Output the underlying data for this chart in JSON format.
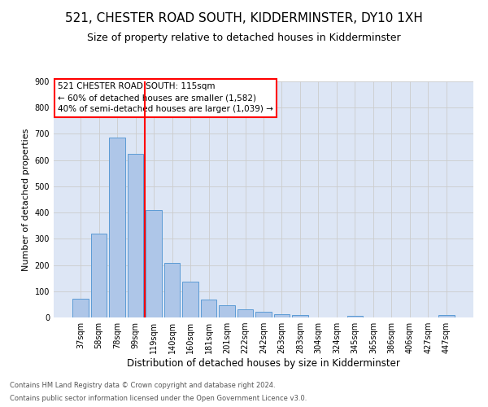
{
  "title": "521, CHESTER ROAD SOUTH, KIDDERMINSTER, DY10 1XH",
  "subtitle": "Size of property relative to detached houses in Kidderminster",
  "xlabel": "Distribution of detached houses by size in Kidderminster",
  "ylabel": "Number of detached properties",
  "footer1": "Contains HM Land Registry data © Crown copyright and database right 2024.",
  "footer2": "Contains public sector information licensed under the Open Government Licence v3.0.",
  "categories": [
    "37sqm",
    "58sqm",
    "78sqm",
    "99sqm",
    "119sqm",
    "140sqm",
    "160sqm",
    "181sqm",
    "201sqm",
    "222sqm",
    "242sqm",
    "263sqm",
    "283sqm",
    "304sqm",
    "324sqm",
    "345sqm",
    "365sqm",
    "386sqm",
    "406sqm",
    "427sqm",
    "447sqm"
  ],
  "values": [
    70,
    320,
    685,
    625,
    410,
    207,
    137,
    68,
    46,
    31,
    22,
    12,
    10,
    0,
    0,
    7,
    0,
    0,
    0,
    0,
    8
  ],
  "bar_color": "#aec6e8",
  "bar_edge_color": "#5b9bd5",
  "vline_color": "red",
  "vline_x_index": 3.5,
  "annotation_title": "521 CHESTER ROAD SOUTH: 115sqm",
  "annotation_line1": "← 60% of detached houses are smaller (1,582)",
  "annotation_line2": "40% of semi-detached houses are larger (1,039) →",
  "ylim": [
    0,
    900
  ],
  "yticks": [
    0,
    100,
    200,
    300,
    400,
    500,
    600,
    700,
    800,
    900
  ],
  "grid_color": "#cccccc",
  "bg_color": "#dde6f5",
  "title_fontsize": 11,
  "subtitle_fontsize": 9,
  "ylabel_fontsize": 8,
  "xlabel_fontsize": 8.5,
  "tick_fontsize": 7,
  "ann_fontsize": 7.5,
  "footer_fontsize": 6
}
